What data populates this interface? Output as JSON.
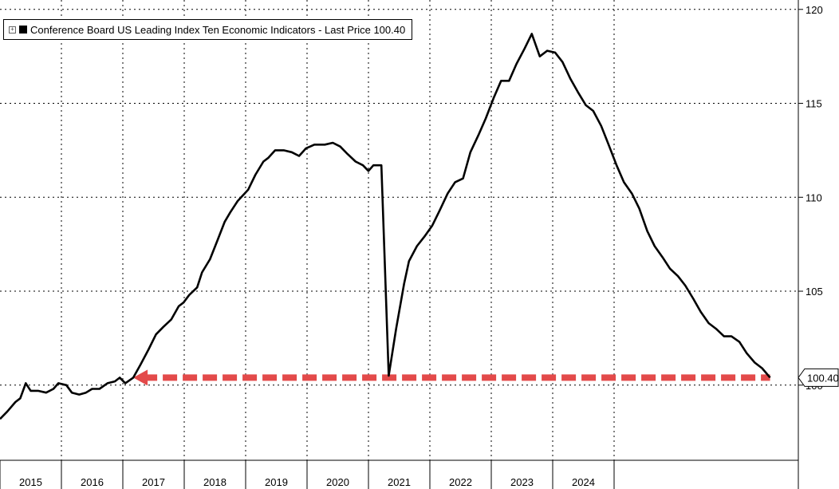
{
  "chart_data": {
    "type": "line",
    "series": [
      {
        "name": "Conference Board US Leading Index Ten Economic Indicators - Last Price 100.40",
        "color": "#000000",
        "points": [
          [
            2015.0,
            98.2
          ],
          [
            2015.12,
            98.6
          ],
          [
            2015.25,
            99.1
          ],
          [
            2015.33,
            99.3
          ],
          [
            2015.42,
            100.1
          ],
          [
            2015.5,
            99.7
          ],
          [
            2015.62,
            99.7
          ],
          [
            2015.75,
            99.6
          ],
          [
            2015.87,
            99.8
          ],
          [
            2015.95,
            100.1
          ],
          [
            2016.08,
            100.0
          ],
          [
            2016.17,
            99.6
          ],
          [
            2016.29,
            99.5
          ],
          [
            2016.4,
            99.6
          ],
          [
            2016.5,
            99.8
          ],
          [
            2016.62,
            99.8
          ],
          [
            2016.75,
            100.1
          ],
          [
            2016.87,
            100.2
          ],
          [
            2016.95,
            100.4
          ],
          [
            2017.04,
            100.1
          ],
          [
            2017.17,
            100.4
          ],
          [
            2017.29,
            101.1
          ],
          [
            2017.42,
            101.9
          ],
          [
            2017.54,
            102.7
          ],
          [
            2017.66,
            103.1
          ],
          [
            2017.79,
            103.5
          ],
          [
            2017.91,
            104.2
          ],
          [
            2017.99,
            104.4
          ],
          [
            2018.08,
            104.8
          ],
          [
            2018.21,
            105.2
          ],
          [
            2018.29,
            106.0
          ],
          [
            2018.42,
            106.7
          ],
          [
            2018.54,
            107.7
          ],
          [
            2018.66,
            108.7
          ],
          [
            2018.75,
            109.2
          ],
          [
            2018.87,
            109.8
          ],
          [
            2019.04,
            110.4
          ],
          [
            2019.16,
            111.2
          ],
          [
            2019.29,
            111.9
          ],
          [
            2019.37,
            112.1
          ],
          [
            2019.48,
            112.5
          ],
          [
            2019.62,
            112.5
          ],
          [
            2019.75,
            112.4
          ],
          [
            2019.87,
            112.2
          ],
          [
            2019.98,
            112.6
          ],
          [
            2020.12,
            112.8
          ],
          [
            2020.29,
            112.8
          ],
          [
            2020.42,
            112.9
          ],
          [
            2020.54,
            112.7
          ],
          [
            2020.66,
            112.3
          ],
          [
            2020.79,
            111.9
          ],
          [
            2020.91,
            111.7
          ],
          [
            2021.0,
            111.4
          ],
          [
            2021.08,
            111.7
          ],
          [
            2021.21,
            111.7
          ],
          [
            2021.33,
            100.5
          ],
          [
            2021.45,
            103.0
          ],
          [
            2021.58,
            105.4
          ],
          [
            2021.66,
            106.6
          ],
          [
            2021.79,
            107.4
          ],
          [
            2021.91,
            107.9
          ],
          [
            2022.04,
            108.5
          ],
          [
            2022.16,
            109.3
          ],
          [
            2022.29,
            110.2
          ],
          [
            2022.41,
            110.8
          ],
          [
            2022.54,
            111.0
          ],
          [
            2022.66,
            112.4
          ],
          [
            2022.79,
            113.3
          ],
          [
            2022.91,
            114.2
          ],
          [
            2023.04,
            115.3
          ],
          [
            2023.16,
            116.2
          ],
          [
            2023.29,
            116.2
          ],
          [
            2023.41,
            117.1
          ],
          [
            2023.54,
            117.9
          ],
          [
            2023.66,
            118.7
          ],
          [
            2023.79,
            117.5
          ],
          [
            2023.91,
            117.8
          ],
          [
            2024.04,
            117.7
          ],
          [
            2024.16,
            117.2
          ],
          [
            2024.29,
            116.3
          ],
          [
            2024.41,
            115.6
          ],
          [
            2024.54,
            114.9
          ],
          [
            2024.66,
            114.6
          ],
          [
            2024.79,
            113.8
          ],
          [
            2024.91,
            112.8
          ],
          [
            2025.04,
            111.7
          ],
          [
            2025.16,
            110.8
          ],
          [
            2025.29,
            110.2
          ],
          [
            2025.41,
            109.4
          ],
          [
            2025.54,
            108.2
          ],
          [
            2025.66,
            107.4
          ],
          [
            2025.79,
            106.8
          ],
          [
            2025.91,
            106.2
          ],
          [
            2026.04,
            105.8
          ],
          [
            2026.16,
            105.3
          ],
          [
            2026.29,
            104.6
          ],
          [
            2026.41,
            103.9
          ],
          [
            2026.54,
            103.3
          ],
          [
            2026.66,
            103.0
          ],
          [
            2026.79,
            102.6
          ],
          [
            2026.91,
            102.6
          ],
          [
            2027.04,
            102.3
          ],
          [
            2027.16,
            101.7
          ],
          [
            2027.29,
            101.2
          ],
          [
            2027.41,
            100.9
          ],
          [
            2027.54,
            100.4
          ]
        ]
      }
    ],
    "reference_line": {
      "value": 100.4,
      "from_x": 2017.17,
      "to_x": 2027.54,
      "color": "#e34a4a",
      "style": "dashed",
      "arrow": "left"
    },
    "x_tick_labels": [
      "2015",
      "2016",
      "2017",
      "2018",
      "2019",
      "2020",
      "2021",
      "2022",
      "2023",
      "2024"
    ],
    "y_ticks": [
      100,
      105,
      110,
      115,
      120
    ],
    "last_price_label": "100.40",
    "xlim": [
      2015.0,
      2028.0
    ],
    "ylim": [
      96.0,
      120.5
    ],
    "grid": true,
    "legend_position": "top-left",
    "title": "",
    "xlabel": "",
    "ylabel": ""
  },
  "legend": {
    "toggle_glyph": "+",
    "text": "Conference Board US Leading Index Ten Economic Indicators - Last Price 100.40"
  }
}
